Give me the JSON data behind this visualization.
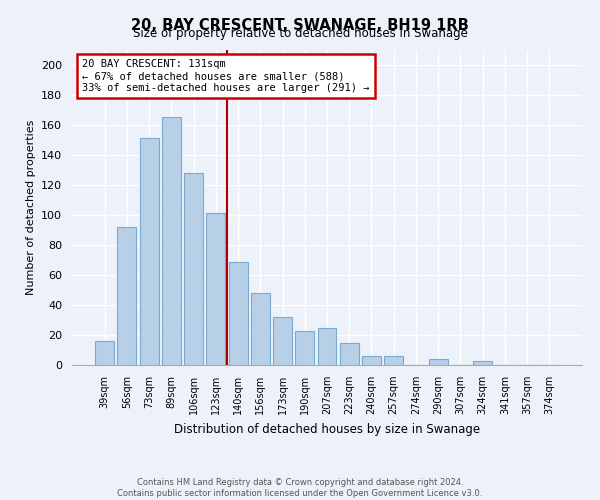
{
  "title": "20, BAY CRESCENT, SWANAGE, BH19 1RB",
  "subtitle": "Size of property relative to detached houses in Swanage",
  "xlabel": "Distribution of detached houses by size in Swanage",
  "ylabel": "Number of detached properties",
  "bar_labels": [
    "39sqm",
    "56sqm",
    "73sqm",
    "89sqm",
    "106sqm",
    "123sqm",
    "140sqm",
    "156sqm",
    "173sqm",
    "190sqm",
    "207sqm",
    "223sqm",
    "240sqm",
    "257sqm",
    "274sqm",
    "290sqm",
    "307sqm",
    "324sqm",
    "341sqm",
    "357sqm",
    "374sqm"
  ],
  "bar_values": [
    16,
    92,
    151,
    165,
    128,
    101,
    69,
    48,
    32,
    23,
    25,
    15,
    6,
    6,
    0,
    4,
    0,
    3,
    0,
    0,
    0
  ],
  "bar_color": "#b8cfe8",
  "bar_edge_color": "#7aaad0",
  "vline_color": "#aa0000",
  "annotation_title": "20 BAY CRESCENT: 131sqm",
  "annotation_line1": "← 67% of detached houses are smaller (588)",
  "annotation_line2": "33% of semi-detached houses are larger (291) →",
  "annotation_box_color": "#ffffff",
  "annotation_box_edge": "#cc0000",
  "ylim": [
    0,
    210
  ],
  "yticks": [
    0,
    20,
    40,
    60,
    80,
    100,
    120,
    140,
    160,
    180,
    200
  ],
  "footer1": "Contains HM Land Registry data © Crown copyright and database right 2024.",
  "footer2": "Contains public sector information licensed under the Open Government Licence v3.0.",
  "bg_color": "#edf1f9"
}
